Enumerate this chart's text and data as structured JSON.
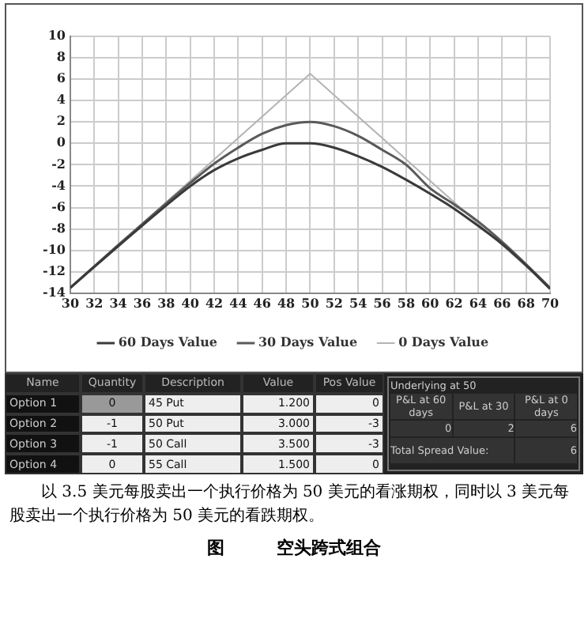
{
  "chart_data": {
    "type": "line",
    "title": "图　　　空头跨式组合",
    "x": [
      30,
      34,
      38,
      40,
      42,
      44,
      46,
      48,
      50,
      52,
      54,
      56,
      58,
      60,
      62,
      64,
      66,
      68,
      70
    ],
    "series": [
      {
        "name": "60 Days Value",
        "color": "#3a3a3a",
        "values": [
          -13.5,
          -9.6,
          -5.8,
          -4.0,
          -2.5,
          -1.4,
          -0.6,
          0,
          0,
          -0.4,
          -1.2,
          -2.2,
          -3.4,
          -4.7,
          -6.1,
          -7.7,
          -9.4,
          -11.4,
          -13.6
        ]
      },
      {
        "name": "30 Days Value",
        "color": "#5a5a5a",
        "values": [
          -13.5,
          -9.5,
          -5.6,
          -3.7,
          -1.9,
          -0.4,
          0.9,
          1.7,
          2,
          1.6,
          0.7,
          -0.6,
          -2.0,
          -4.2,
          -5.7,
          -7.3,
          -9.2,
          -11.3,
          -13.5
        ]
      },
      {
        "name": "0 Days Value",
        "color": "#b4b4b4",
        "x": [
          30,
          50,
          70
        ],
        "values": [
          -13.5,
          6.5,
          -13.5
        ]
      }
    ],
    "xlim": [
      30,
      70
    ],
    "xticks": [
      30,
      32,
      34,
      36,
      38,
      40,
      42,
      44,
      46,
      48,
      50,
      52,
      54,
      56,
      58,
      60,
      62,
      64,
      66,
      68,
      70
    ],
    "ylim": [
      -14,
      10
    ],
    "yticks": [
      -14,
      -12,
      -10,
      -8,
      -6,
      -4,
      -2,
      0,
      2,
      4,
      6,
      8,
      10
    ],
    "grid": true,
    "legend": "bottom",
    "marker": "none",
    "line_style": "solid",
    "annotations": [
      "Name",
      "Quantity",
      "Description",
      "Value",
      "Pos Value",
      "Option 1",
      "0",
      "45 Put",
      "1.200",
      "0",
      "Option 2",
      "-1",
      "50 Put",
      "3.000",
      "-3",
      "Option 3",
      "-1",
      "50 Call",
      "3.500",
      "-3",
      "Option 4",
      "0",
      "55 Call",
      "1.500",
      "0",
      "Underlying at 50",
      "P&L at 60 days",
      "P&L at 30",
      "P&L at 0 days",
      "0",
      "2",
      "6",
      "Total Spread Value:",
      "6",
      "以 3.5 美元每股卖出一个执行价格为 50 美元的看涨期权，同时以 3 美元每股卖出一个执行价格为 50 美元的看跌期权。"
    ]
  }
}
